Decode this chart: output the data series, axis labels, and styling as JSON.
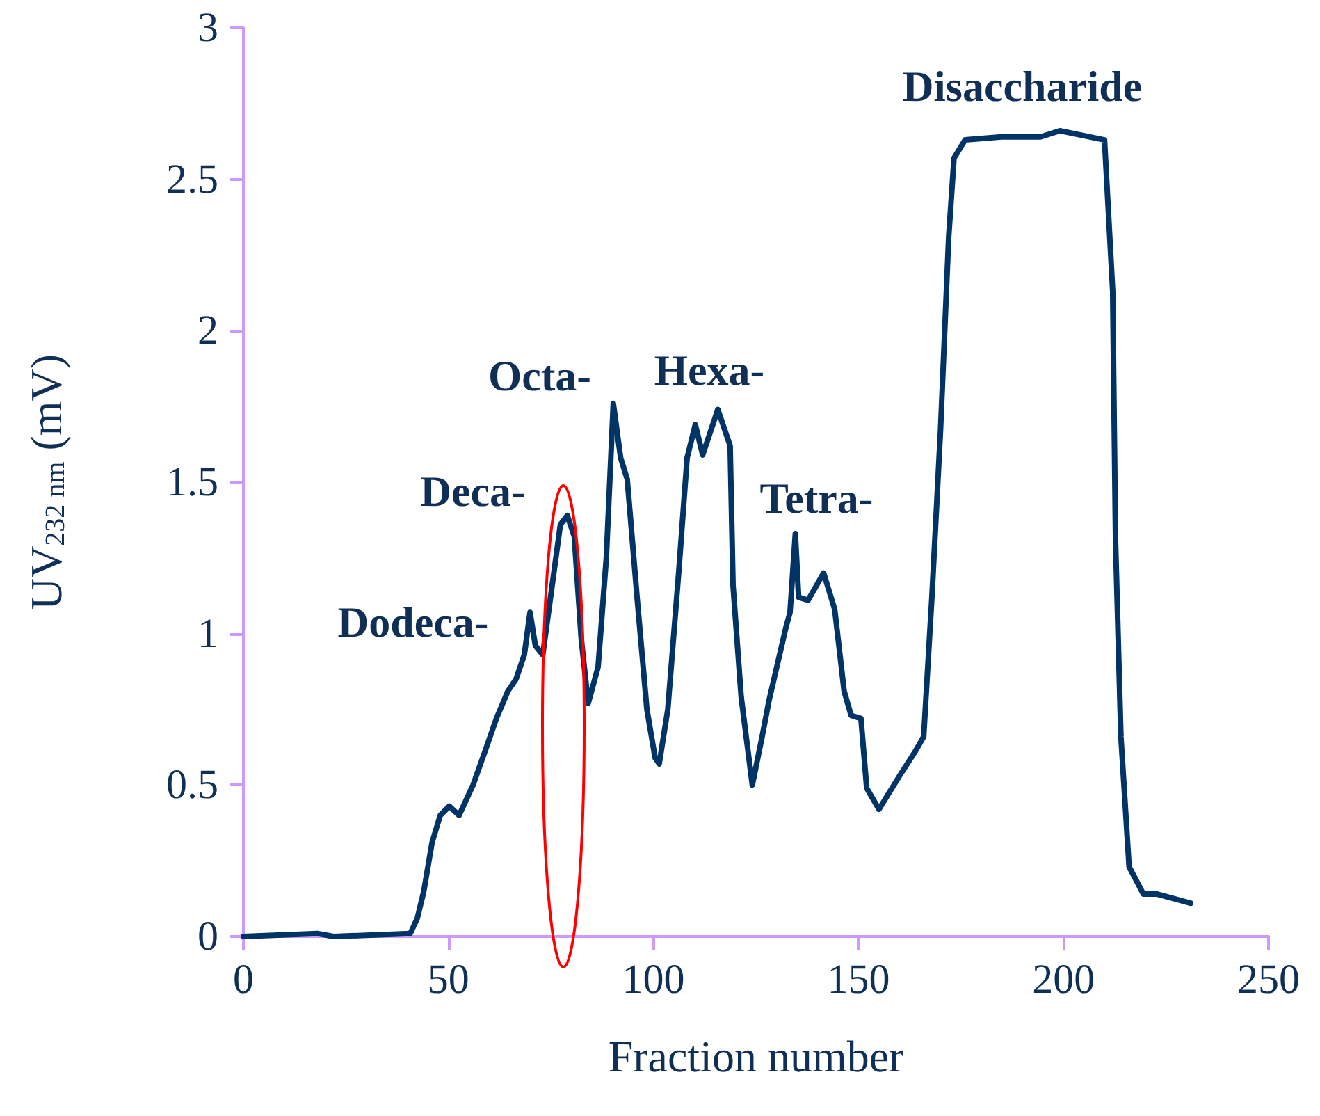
{
  "chart_data": {
    "type": "line",
    "xlabel": "Fraction number",
    "ylabel": "UV$_{232 nm}$ (mV)",
    "series": [
      {
        "color": "#003366",
        "x": [
          0,
          18,
          22,
          40.7,
          42.4,
          44,
          46,
          48,
          50.2,
          52.6,
          56,
          59.4,
          61.7,
          64.5,
          66.5,
          68.5,
          69.9,
          71.2,
          73,
          75.3,
          77.3,
          79,
          80.7,
          82.4,
          84.1,
          86.5,
          88.5,
          90.2,
          92,
          93.6,
          96,
          98.4,
          100.4,
          101.4,
          103.5,
          106.2,
          108.2,
          110.2,
          112,
          115.7,
          118.7,
          119.4,
          121.4,
          124.1,
          126.5,
          128.2,
          132.3,
          133.3,
          134.6,
          135.4,
          137.7,
          141.5,
          144.2,
          146.5,
          148.2,
          150.6,
          152,
          155,
          160,
          163.8,
          165.9,
          167.9,
          170,
          172,
          173.3,
          176,
          184.9,
          194.4,
          199.1,
          210,
          212,
          212.7,
          214,
          216,
          219.5,
          222.9,
          231
        ],
        "values": [
          0,
          0.01,
          0,
          0.01,
          0.06,
          0.15,
          0.31,
          0.4,
          0.43,
          0.4,
          0.5,
          0.63,
          0.72,
          0.81,
          0.85,
          0.93,
          1.07,
          0.96,
          0.93,
          1.16,
          1.36,
          1.39,
          1.32,
          0.98,
          0.77,
          0.89,
          1.25,
          1.76,
          1.58,
          1.51,
          1.12,
          0.75,
          0.59,
          0.57,
          0.75,
          1.21,
          1.58,
          1.69,
          1.59,
          1.74,
          1.62,
          1.16,
          0.79,
          0.5,
          0.66,
          0.78,
          1.02,
          1.07,
          1.33,
          1.12,
          1.11,
          1.2,
          1.08,
          0.81,
          0.73,
          0.72,
          0.49,
          0.42,
          0.53,
          0.61,
          0.66,
          1.12,
          1.67,
          2.31,
          2.57,
          2.63,
          2.64,
          2.64,
          2.66,
          2.63,
          2.13,
          1.3,
          0.66,
          0.23,
          0.14,
          0.14,
          0.11
        ]
      }
    ],
    "xlim": [
      0,
      250
    ],
    "xticks": [
      0,
      50,
      100,
      150,
      200,
      250
    ],
    "ylim": [
      0,
      3
    ],
    "yticks": [
      0,
      0.5,
      1,
      1.5,
      2,
      2.5,
      3
    ],
    "grid": false,
    "marker": "none",
    "line_style": "solid",
    "annotations": [
      "Dodeca-",
      "Deca-",
      "Octa-",
      "Hexa-",
      "Tetra-",
      "Disaccharide"
    ]
  }
}
